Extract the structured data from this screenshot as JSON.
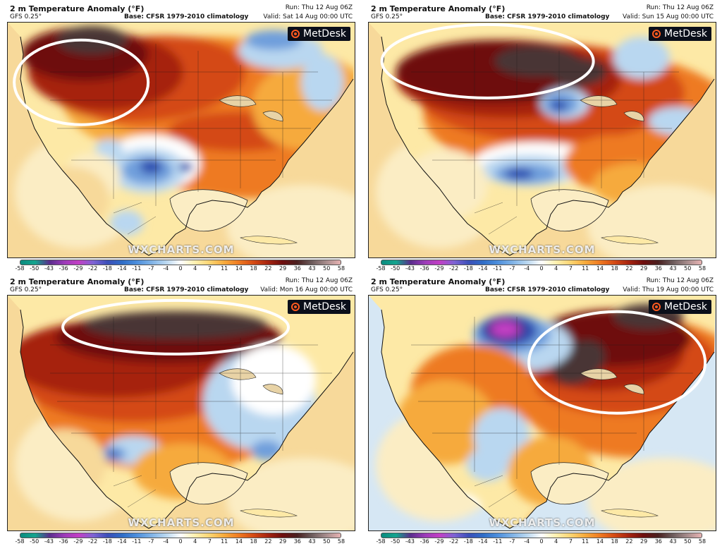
{
  "chart_data": {
    "type": "heatmap",
    "colorbar": {
      "ticks": [
        "-58",
        "-50",
        "-43",
        "-36",
        "-29",
        "-22",
        "-18",
        "-14",
        "-11",
        "-7",
        "-4",
        "0",
        "4",
        "7",
        "11",
        "14",
        "18",
        "22",
        "29",
        "36",
        "43",
        "50",
        "58"
      ],
      "colors": [
        "#0b8a7e",
        "#14a48e",
        "#5a2d8c",
        "#9b3bb8",
        "#c23fc4",
        "#7d63d3",
        "#3b4fb8",
        "#2f6dc7",
        "#4d8fdc",
        "#7fb2e6",
        "#b9d7f0",
        "#ffffff",
        "#fff0b0",
        "#fbd472",
        "#f6aa3c",
        "#ee7a22",
        "#d44a14",
        "#a62410",
        "#6e0e0e",
        "#4a1f1f",
        "#6b5a5a",
        "#a58b8b",
        "#e7b3b3"
      ]
    },
    "panels": [
      {
        "title": "2 m Temperature Anomaly (°F)",
        "model": "GFS 0.25°",
        "base": "Base: CFSR 1979-2010 climatology",
        "run": "Run: Thu 12 Aug 06Z",
        "valid": "Valid: Sat 14 Aug 00:00 UTC",
        "logo": "MetDesk",
        "watermark": "WXCHARTS.COM"
      },
      {
        "title": "2 m Temperature Anomaly (°F)",
        "model": "GFS 0.25°",
        "base": "Base: CFSR 1979-2010 climatology",
        "run": "Run: Thu 12 Aug 06Z",
        "valid": "Valid: Sun 15 Aug 00:00 UTC",
        "logo": "MetDesk",
        "watermark": "WXCHARTS.COM"
      },
      {
        "title": "2 m Temperature Anomaly (°F)",
        "model": "GFS 0.25°",
        "base": "Base: CFSR 1979-2010 climatology",
        "run": "Run: Thu 12 Aug 06Z",
        "valid": "Valid: Mon 16 Aug 00:00 UTC",
        "logo": "MetDesk",
        "watermark": "WXCHARTS.COM"
      },
      {
        "title": "2 m Temperature Anomaly (°F)",
        "model": "GFS 0.25°",
        "base": "Base: CFSR 1979-2010 climatology",
        "run": "Run: Thu 12 Aug 06Z",
        "valid": "Valid: Thu 19 Aug 00:00 UTC",
        "logo": "MetDesk",
        "watermark": "WXCHARTS.COM"
      }
    ]
  },
  "colors": {
    "ocean_warm": "#f7d99a",
    "ocean_pale": "#fbedc4",
    "ocean_cool": "#d6e7f4",
    "highlight_ring": "#ffffff"
  }
}
